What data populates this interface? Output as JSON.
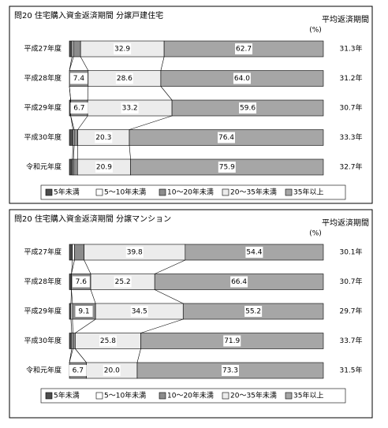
{
  "chart_data": [
    {
      "type": "stacked-bar-horizontal",
      "title": "問20 住宅購入資金返済期間 分譲戸建住宅",
      "unit_label": "(%)",
      "categories": [
        "平成27年度",
        "平成28年度",
        "平成29年度",
        "平成30年度",
        "令和元年度"
      ],
      "xlim": [
        0,
        100
      ],
      "series": [
        {
          "name": "5年未満",
          "color": "#4d4d4d",
          "values": [
            1.0,
            0,
            0.5,
            1.4,
            1.2
          ]
        },
        {
          "name": "5～10年未満",
          "color": "#ffffff",
          "values": [
            0.6,
            0,
            0,
            0.5,
            0.4
          ]
        },
        {
          "name": "10～20年未満",
          "color": "#8c8c8c",
          "values": [
            2.8,
            7.4,
            6.7,
            1.4,
            1.6
          ],
          "value_labels": [
            null,
            "7.4",
            "6.7",
            null,
            null
          ]
        },
        {
          "name": "20～35年未満",
          "color": "#ececec",
          "values": [
            32.9,
            28.6,
            33.2,
            20.3,
            20.9
          ],
          "value_labels": [
            "32.9",
            "28.6",
            "33.2",
            "20.3",
            "20.9"
          ]
        },
        {
          "name": "35年以上",
          "color": "#a6a6a6",
          "values": [
            62.7,
            64.0,
            59.6,
            76.4,
            75.9
          ],
          "value_labels": [
            "62.7",
            "64.0",
            "59.6",
            "76.4",
            "75.9"
          ]
        }
      ],
      "average": {
        "title": "平均返済期間",
        "values": [
          31.3,
          31.2,
          30.7,
          33.3,
          32.7
        ],
        "value_labels": [
          "31.3年",
          "31.2年",
          "30.7年",
          "33.3年",
          "32.7年"
        ]
      }
    },
    {
      "type": "stacked-bar-horizontal",
      "title": "問20 住宅購入資金返済期間 分譲マンション",
      "unit_label": "(%)",
      "categories": [
        "平成27年度",
        "平成28年度",
        "平成29年度",
        "平成30年度",
        "令和元年度"
      ],
      "xlim": [
        0,
        100
      ],
      "series": [
        {
          "name": "5年未満",
          "color": "#4d4d4d",
          "values": [
            1.2,
            0.8,
            0.6,
            0.9,
            0
          ]
        },
        {
          "name": "5～10年未満",
          "color": "#ffffff",
          "values": [
            0.8,
            0,
            0.6,
            0.5,
            0
          ]
        },
        {
          "name": "10～20年未満",
          "color": "#8c8c8c",
          "values": [
            3.8,
            7.6,
            9.1,
            0.9,
            6.7
          ],
          "value_labels": [
            null,
            "7.6",
            "9.1",
            null,
            "6.7"
          ]
        },
        {
          "name": "20～35年未満",
          "color": "#ececec",
          "values": [
            39.8,
            25.2,
            34.5,
            25.8,
            20.0
          ],
          "value_labels": [
            "39.8",
            "25.2",
            "34.5",
            "25.8",
            "20.0"
          ]
        },
        {
          "name": "35年以上",
          "color": "#a6a6a6",
          "values": [
            54.4,
            66.4,
            55.2,
            71.9,
            73.3
          ],
          "value_labels": [
            "54.4",
            "66.4",
            "55.2",
            "71.9",
            "73.3"
          ]
        }
      ],
      "average": {
        "title": "平均返済期間",
        "values": [
          30.1,
          30.7,
          29.7,
          33.7,
          31.5
        ],
        "value_labels": [
          "30.1年",
          "30.7年",
          "29.7年",
          "33.7年",
          "31.5年"
        ]
      }
    }
  ]
}
